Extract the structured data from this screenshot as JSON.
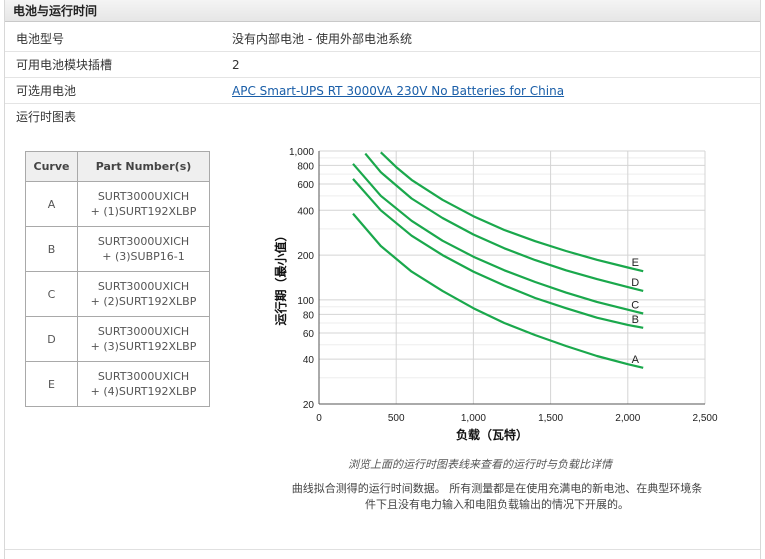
{
  "section": {
    "title": "电池与运行时间"
  },
  "specs": {
    "battery_model": {
      "label": "电池型号",
      "value": "没有内部电池 - 使用外部电池系统"
    },
    "slots": {
      "label": "可用电池模块插槽",
      "value": "2"
    },
    "optional_battery": {
      "label": "可选用电池",
      "link": "APC Smart-UPS RT 3000VA 230V No Batteries for China"
    },
    "runtime_chart": {
      "label": "运行时图表"
    }
  },
  "curve_table": {
    "headers": {
      "curve": "Curve",
      "part": "Part Number(s)"
    },
    "rows": [
      {
        "curve": "A",
        "part1": "SURT3000UXICH",
        "part2": "+ (1)SURT192XLBP"
      },
      {
        "curve": "B",
        "part1": "SURT3000UXICH",
        "part2": "+ (3)SUBP16-1"
      },
      {
        "curve": "C",
        "part1": "SURT3000UXICH",
        "part2": "+ (2)SURT192XLBP"
      },
      {
        "curve": "D",
        "part1": "SURT3000UXICH",
        "part2": "+ (3)SURT192XLBP"
      },
      {
        "curve": "E",
        "part1": "SURT3000UXICH",
        "part2": "+ (4)SURT192XLBP"
      }
    ]
  },
  "chart_data": {
    "type": "line",
    "xlabel": "负载（瓦特）",
    "ylabel": "运行期（最小值）",
    "xscale": "linear",
    "yscale": "log",
    "xlim": [
      0,
      2500
    ],
    "ylim": [
      20,
      1000
    ],
    "xticks": [
      0,
      500,
      1000,
      1500,
      2000,
      2500
    ],
    "xtick_labels": [
      "0",
      "500",
      "1,000",
      "1,500",
      "2,000",
      "2,500"
    ],
    "yticks": [
      20,
      40,
      60,
      80,
      100,
      200,
      400,
      600,
      800,
      1000
    ],
    "ytick_labels": [
      "20",
      "40",
      "60",
      "80",
      "100",
      "200",
      "400",
      "600",
      "800",
      "1,000"
    ],
    "grid": true,
    "line_color": "#1aa84c",
    "series": [
      {
        "name": "A",
        "x": [
          220,
          400,
          600,
          800,
          1000,
          1200,
          1400,
          1600,
          1800,
          2000,
          2100
        ],
        "y": [
          380,
          230,
          155,
          115,
          88,
          70,
          58,
          49,
          42,
          37,
          35
        ]
      },
      {
        "name": "B",
        "x": [
          220,
          400,
          600,
          800,
          1000,
          1200,
          1400,
          1600,
          1800,
          2000,
          2100
        ],
        "y": [
          650,
          400,
          270,
          200,
          155,
          125,
          103,
          88,
          76,
          68,
          65
        ]
      },
      {
        "name": "C",
        "x": [
          220,
          400,
          600,
          800,
          1000,
          1200,
          1400,
          1600,
          1800,
          2000,
          2100
        ],
        "y": [
          820,
          500,
          340,
          250,
          195,
          158,
          132,
          112,
          97,
          86,
          81
        ]
      },
      {
        "name": "D",
        "x": [
          300,
          400,
          600,
          800,
          1000,
          1200,
          1400,
          1600,
          1800,
          2000,
          2100
        ],
        "y": [
          960,
          720,
          480,
          355,
          275,
          222,
          185,
          158,
          138,
          122,
          115
        ]
      },
      {
        "name": "E",
        "x": [
          400,
          500,
          600,
          800,
          1000,
          1200,
          1400,
          1600,
          1800,
          2000,
          2100
        ],
        "y": [
          980,
          780,
          640,
          470,
          365,
          295,
          248,
          213,
          186,
          165,
          156
        ]
      }
    ]
  },
  "caption": "浏览上面的运行时图表线来查看的运行时与负载比详情",
  "note": {
    "line1": "曲线拟合测得的运行时间数据。 所有测量都是在使用充满电的新电池、在典型环境条",
    "line2": "件下且没有电力输入和电阻负载输出的情况下开展的。"
  }
}
